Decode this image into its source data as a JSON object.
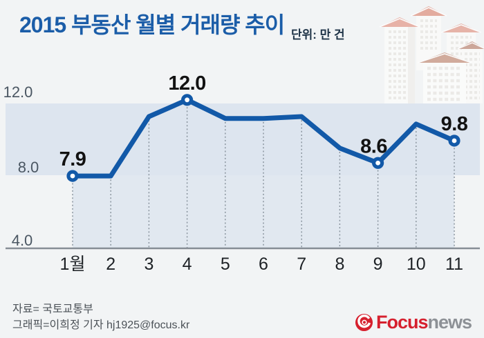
{
  "title": "2015 부동산 월별 거래량 추이",
  "unit_label": "단위: 만 건",
  "footer": {
    "source": "자료= 국토교통부",
    "credit": "그래픽=이희정 기자 hj1925@focus.kr"
  },
  "logo": {
    "brand_primary": "Focus",
    "brand_secondary": "news"
  },
  "chart_data": {
    "type": "line",
    "title": "2015 부동산 월별 거래량 추이",
    "unit": "단위: 만 건",
    "categories": [
      "1월",
      "2",
      "3",
      "4",
      "5",
      "6",
      "7",
      "8",
      "9",
      "10",
      "11"
    ],
    "values": [
      7.9,
      7.9,
      11.1,
      12.0,
      11.0,
      11.0,
      11.1,
      9.4,
      8.6,
      10.7,
      9.8
    ],
    "labeled_points": [
      {
        "index": 0,
        "label": "7.9"
      },
      {
        "index": 3,
        "label": "12.0"
      },
      {
        "index": 8,
        "label": "8.6",
        "dx": -6
      },
      {
        "index": 10,
        "label": "9.8"
      }
    ],
    "yticks": [
      {
        "value": 12.0,
        "label": "12.0"
      },
      {
        "value": 8.0,
        "label": "8.0"
      },
      {
        "value": 4.0,
        "label": "4.0"
      }
    ],
    "ylim": [
      4,
      13
    ],
    "band": [
      8.0,
      12.0
    ],
    "grid": "vertical-dashed",
    "legend": "none",
    "colors": {
      "line": "#1259a8",
      "band": "#dde5ef",
      "panel": "#e1e8f0",
      "axis": "#868d95",
      "dash": "#838e98",
      "point_label": "#121212",
      "ytick": "#4a5662",
      "xtick": "#1d2125"
    }
  }
}
